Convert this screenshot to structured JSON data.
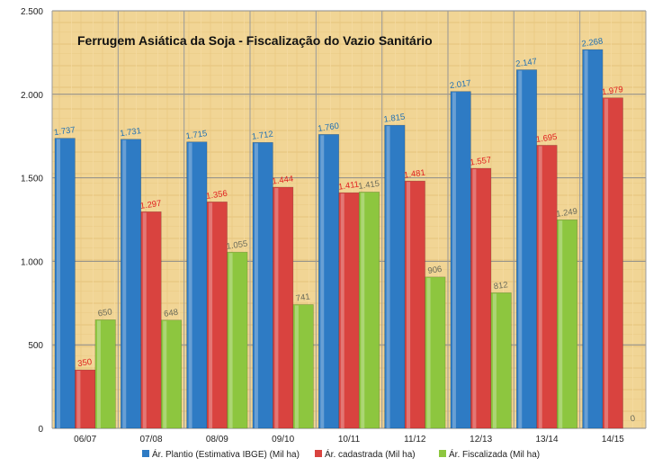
{
  "chart_data": {
    "type": "bar",
    "title": "Ferrugem Asiática da Soja - Fiscalização do Vazio Sanitário",
    "categories": [
      "06/07",
      "07/08",
      "08/09",
      "09/10",
      "10/11",
      "11/12",
      "12/13",
      "13/14",
      "14/15"
    ],
    "ylim": [
      0,
      2500
    ],
    "yticks": [
      0,
      500,
      1000,
      1500,
      2000,
      2500
    ],
    "ytick_labels": [
      "0",
      "500",
      "1.000",
      "1.500",
      "2.000",
      "2.500"
    ],
    "grid": true,
    "legend_position": "bottom",
    "series": [
      {
        "name": "Ár. Plantio (Estimativa IBGE) (Mil ha)",
        "color": "#2e7bc4",
        "label_color": "#1f6fb3",
        "values": [
          1737,
          1731,
          1715,
          1712,
          1760,
          1815,
          2017,
          2147,
          2268
        ],
        "labels": [
          "1.737",
          "1.731",
          "1.715",
          "1.712",
          "1.760",
          "1.815",
          "2.017",
          "2.147",
          "2.268"
        ]
      },
      {
        "name": "Ár. cadastrada (Mil ha)",
        "color": "#d9433f",
        "label_color": "#e02020",
        "values": [
          350,
          1297,
          1356,
          1444,
          1411,
          1481,
          1557,
          1695,
          1979
        ],
        "labels": [
          "350",
          "1.297",
          "1.356",
          "1.444",
          "1.411",
          "1.481",
          "1.557",
          "1.695",
          "1.979"
        ]
      },
      {
        "name": "Ár. Fiscalizada (Mil ha)",
        "color": "#8dc63f",
        "label_color": "#6b6b5a",
        "values": [
          650,
          648,
          1055,
          741,
          1415,
          906,
          812,
          1249,
          0
        ],
        "labels": [
          "650",
          "648",
          "1.055",
          "741",
          "1.415",
          "906",
          "812",
          "1.249",
          "0"
        ]
      }
    ]
  }
}
